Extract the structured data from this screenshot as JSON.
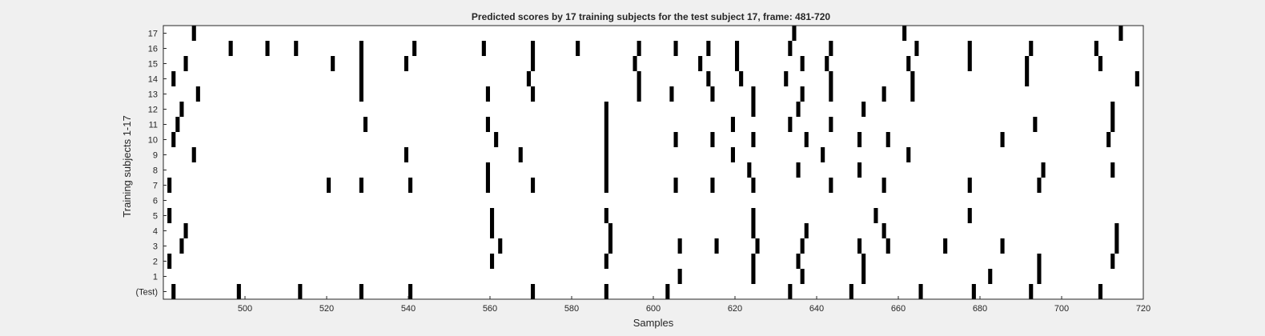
{
  "chart_data": {
    "type": "heatmap",
    "title": "Predicted scores by 17 training subjects for the test subject 17, frame: 481-720",
    "xlabel": "Samples",
    "ylabel": "Training subjects 1-17",
    "xlim": [
      481,
      720
    ],
    "xticks": [
      500,
      520,
      540,
      560,
      580,
      600,
      620,
      640,
      660,
      680,
      700,
      720
    ],
    "rows": [
      "(Test)",
      "1",
      "2",
      "3",
      "4",
      "5",
      "6",
      "7",
      "8",
      "9",
      "10",
      "11",
      "12",
      "13",
      "14",
      "15",
      "16",
      "17"
    ],
    "grid": false,
    "colors": {
      "background": "#f0f0f0",
      "plot": "#ffffff",
      "mark": "#000000",
      "text": "#262626"
    },
    "events": {
      "(Test)": [
        483,
        499,
        514,
        529,
        541,
        571,
        589,
        604,
        634,
        649,
        666,
        679,
        693,
        710
      ],
      "1": [
        607,
        625,
        637,
        652,
        683,
        695
      ],
      "2": [
        482,
        561,
        589,
        625,
        636,
        652,
        695,
        713
      ],
      "3": [
        485,
        563,
        590,
        607,
        616,
        626,
        637,
        651,
        658,
        672,
        686,
        714
      ],
      "4": [
        486,
        561,
        590,
        625,
        638,
        657,
        714
      ],
      "5": [
        482,
        561,
        589,
        625,
        655,
        678
      ],
      "6": [],
      "7": [
        482,
        521,
        529,
        541,
        560,
        571,
        589,
        606,
        615,
        625,
        644,
        657,
        678,
        695
      ],
      "8": [
        560,
        589,
        624,
        636,
        651,
        696,
        713
      ],
      "9": [
        488,
        540,
        568,
        589,
        620,
        642,
        663
      ],
      "10": [
        483,
        562,
        589,
        606,
        615,
        625,
        638,
        651,
        658,
        686,
        712
      ],
      "11": [
        484,
        530,
        560,
        589,
        620,
        634,
        644,
        694,
        713
      ],
      "12": [
        485,
        589,
        625,
        636,
        652,
        713
      ],
      "13": [
        489,
        529,
        560,
        571,
        597,
        605,
        615,
        625,
        637,
        644,
        657,
        664
      ],
      "14": [
        483,
        529,
        570,
        597,
        614,
        622,
        633,
        644,
        664,
        692,
        719
      ],
      "15": [
        486,
        522,
        529,
        540,
        571,
        596,
        612,
        621,
        637,
        643,
        663,
        678,
        692,
        710
      ],
      "16": [
        497,
        506,
        513,
        529,
        542,
        559,
        571,
        582,
        597,
        606,
        614,
        621,
        634,
        644,
        665,
        678,
        693,
        709
      ],
      "17": [
        488,
        635,
        662,
        715
      ]
    }
  }
}
